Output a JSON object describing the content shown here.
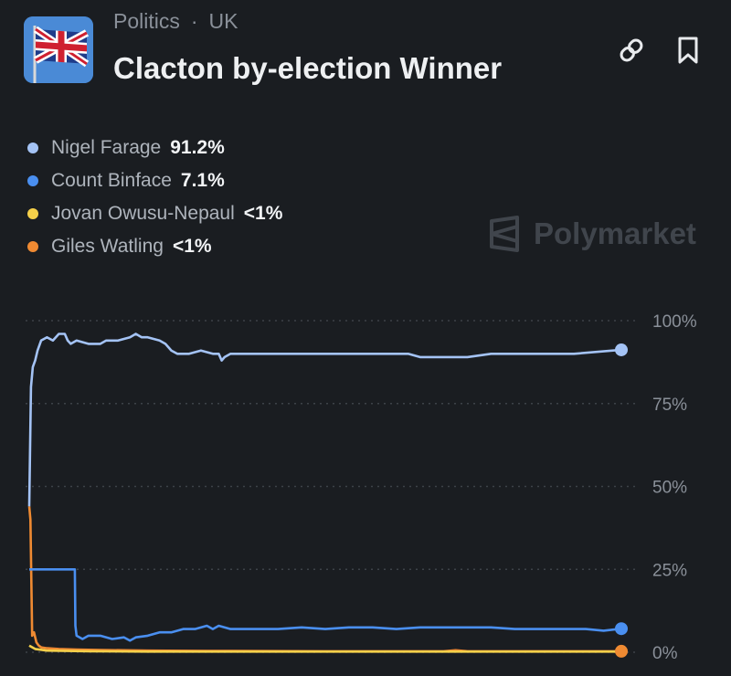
{
  "header": {
    "category": "Politics",
    "separator": "·",
    "region": "UK",
    "title": "Clacton by-election Winner"
  },
  "icons": {
    "market": "uk-flag-icon",
    "link": "link-icon",
    "bookmark": "bookmark-icon",
    "watermark": "polymarket-logo-icon"
  },
  "watermark": "Polymarket",
  "legend": [
    {
      "name": "Nigel Farage",
      "value": "91.2%",
      "color": "#a4c3f5"
    },
    {
      "name": "Count Binface",
      "value": "7.1%",
      "color": "#4a8ff0"
    },
    {
      "name": "Jovan Owusu-Nepaul",
      "value": "<1%",
      "color": "#f5d04a"
    },
    {
      "name": "Giles Watling",
      "value": "<1%",
      "color": "#ef8a32"
    }
  ],
  "chart_data": {
    "type": "line",
    "ylim": [
      0,
      100
    ],
    "y_ticks": [
      "100%",
      "75%",
      "50%",
      "25%",
      "0%"
    ],
    "y_tick_values": [
      100,
      75,
      50,
      25,
      0
    ],
    "grid": "horizontal dotted",
    "x_range": [
      0,
      100
    ],
    "series": [
      {
        "name": "Nigel Farage",
        "color": "#a4c3f5",
        "points": [
          [
            0,
            44
          ],
          [
            0.3,
            80
          ],
          [
            0.6,
            86
          ],
          [
            1,
            88
          ],
          [
            1.4,
            91
          ],
          [
            2,
            94
          ],
          [
            3,
            95
          ],
          [
            4,
            94
          ],
          [
            5,
            96
          ],
          [
            6,
            96
          ],
          [
            6.5,
            94
          ],
          [
            7,
            93
          ],
          [
            8,
            94
          ],
          [
            10,
            93
          ],
          [
            12,
            93
          ],
          [
            13,
            94
          ],
          [
            15,
            94
          ],
          [
            17,
            95
          ],
          [
            18,
            96
          ],
          [
            19,
            95
          ],
          [
            20,
            95
          ],
          [
            22,
            94
          ],
          [
            23,
            93
          ],
          [
            24,
            91
          ],
          [
            25,
            90
          ],
          [
            27,
            90
          ],
          [
            29,
            91
          ],
          [
            31,
            90
          ],
          [
            32,
            90
          ],
          [
            32.5,
            88
          ],
          [
            33,
            89
          ],
          [
            34,
            90
          ],
          [
            36,
            90
          ],
          [
            40,
            90
          ],
          [
            45,
            90
          ],
          [
            50,
            90
          ],
          [
            60,
            90
          ],
          [
            64,
            90
          ],
          [
            66,
            89
          ],
          [
            70,
            89
          ],
          [
            74,
            89
          ],
          [
            78,
            90
          ],
          [
            85,
            90
          ],
          [
            92,
            90
          ],
          [
            100,
            91.2
          ]
        ]
      },
      {
        "name": "Count Binface",
        "color": "#4a8ff0",
        "points": [
          [
            0,
            25
          ],
          [
            7.7,
            25
          ],
          [
            7.8,
            8
          ],
          [
            8,
            5
          ],
          [
            9,
            4
          ],
          [
            10,
            5
          ],
          [
            12,
            5
          ],
          [
            14,
            4
          ],
          [
            16,
            4.5
          ],
          [
            17,
            3.5
          ],
          [
            18,
            4.5
          ],
          [
            20,
            5
          ],
          [
            22,
            6
          ],
          [
            24,
            6
          ],
          [
            26,
            7
          ],
          [
            28,
            7
          ],
          [
            30,
            8
          ],
          [
            31,
            7
          ],
          [
            32,
            8
          ],
          [
            34,
            7
          ],
          [
            38,
            7
          ],
          [
            42,
            7
          ],
          [
            46,
            7.5
          ],
          [
            50,
            7
          ],
          [
            54,
            7.5
          ],
          [
            58,
            7.5
          ],
          [
            62,
            7
          ],
          [
            66,
            7.5
          ],
          [
            70,
            7.5
          ],
          [
            74,
            7.5
          ],
          [
            78,
            7.5
          ],
          [
            82,
            7
          ],
          [
            86,
            7
          ],
          [
            90,
            7
          ],
          [
            94,
            7
          ],
          [
            97,
            6.5
          ],
          [
            100,
            7.1
          ]
        ]
      },
      {
        "name": "Jovan Owusu-Nepaul",
        "color": "#f5d04a",
        "points": [
          [
            0,
            2
          ],
          [
            1,
            1
          ],
          [
            3,
            0.5
          ],
          [
            10,
            0.3
          ],
          [
            20,
            0.2
          ],
          [
            40,
            0.2
          ],
          [
            60,
            0.2
          ],
          [
            80,
            0.2
          ],
          [
            100,
            0.2
          ]
        ]
      },
      {
        "name": "Giles Watling",
        "color": "#ef8a32",
        "points": [
          [
            0,
            44
          ],
          [
            0.2,
            40
          ],
          [
            0.5,
            5
          ],
          [
            0.8,
            6
          ],
          [
            1.2,
            3
          ],
          [
            1.6,
            2
          ],
          [
            2,
            1.5
          ],
          [
            3,
            1.2
          ],
          [
            5,
            1
          ],
          [
            8,
            0.8
          ],
          [
            12,
            0.7
          ],
          [
            20,
            0.5
          ],
          [
            30,
            0.4
          ],
          [
            50,
            0.3
          ],
          [
            70,
            0.3
          ],
          [
            72,
            0.6
          ],
          [
            74,
            0.3
          ],
          [
            100,
            0.3
          ]
        ]
      }
    ]
  }
}
